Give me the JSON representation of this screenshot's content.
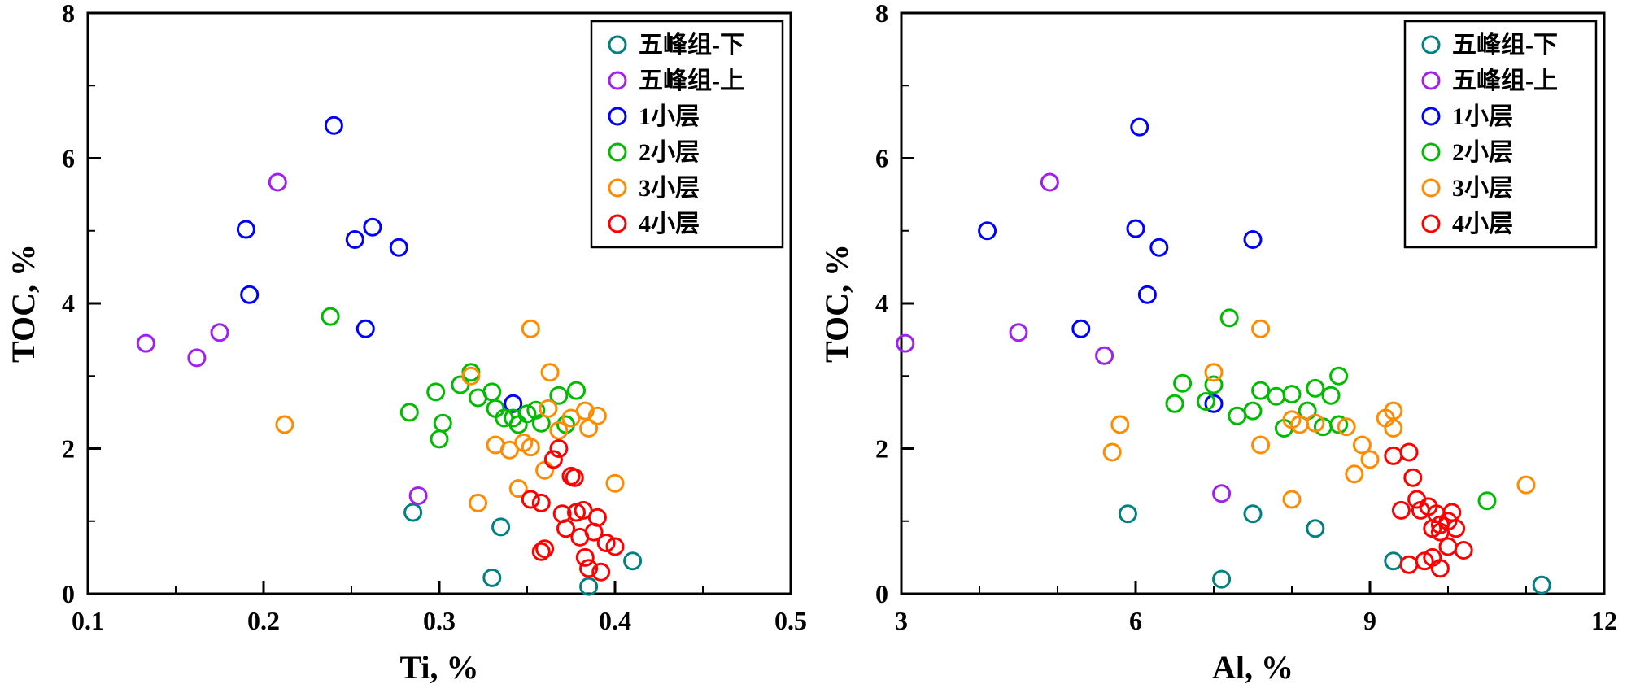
{
  "figure": {
    "background": "#ffffff",
    "frame_color": "#000000"
  },
  "chart_data": [
    {
      "type": "scatter",
      "title": "",
      "xlabel": "Ti, %",
      "ylabel": "TOC, %",
      "xlim": [
        0.1,
        0.5
      ],
      "ylim": [
        0,
        8
      ],
      "xticks": [
        0.1,
        0.2,
        0.3,
        0.4,
        0.5
      ],
      "xtick_labels": [
        "0.1",
        "0.2",
        "0.3",
        "0.4",
        "0.5"
      ],
      "yticks": [
        0,
        2,
        4,
        6,
        8
      ],
      "ytick_labels": [
        "0",
        "2",
        "4",
        "6",
        "8"
      ],
      "x_minor_step": 0.05,
      "y_minor_step": 1,
      "grid": false,
      "legend_position": "top-right",
      "marker": "open-circle",
      "series": [
        {
          "name": "五峰组-下",
          "color": "#008080",
          "points": [
            [
              0.285,
              1.12
            ],
            [
              0.335,
              0.92
            ],
            [
              0.33,
              0.22
            ],
            [
              0.385,
              0.1
            ],
            [
              0.41,
              0.45
            ]
          ]
        },
        {
          "name": "五峰组-上",
          "color": "#A020F0",
          "points": [
            [
              0.133,
              3.45
            ],
            [
              0.162,
              3.25
            ],
            [
              0.175,
              3.6
            ],
            [
              0.208,
              5.67
            ],
            [
              0.288,
              1.35
            ]
          ]
        },
        {
          "name": "1小层",
          "color": "#0000FF",
          "points": [
            [
              0.19,
              5.02
            ],
            [
              0.192,
              4.12
            ],
            [
              0.24,
              6.45
            ],
            [
              0.252,
              4.88
            ],
            [
              0.262,
              5.05
            ],
            [
              0.258,
              3.65
            ],
            [
              0.277,
              4.77
            ],
            [
              0.342,
              2.62
            ]
          ]
        },
        {
          "name": "2小层",
          "color": "#00BB00",
          "points": [
            [
              0.238,
              3.82
            ],
            [
              0.283,
              2.5
            ],
            [
              0.298,
              2.78
            ],
            [
              0.302,
              2.35
            ],
            [
              0.3,
              2.13
            ],
            [
              0.312,
              2.88
            ],
            [
              0.318,
              3.05
            ],
            [
              0.322,
              2.7
            ],
            [
              0.33,
              2.78
            ],
            [
              0.332,
              2.55
            ],
            [
              0.337,
              2.42
            ],
            [
              0.345,
              2.33
            ],
            [
              0.35,
              2.48
            ],
            [
              0.355,
              2.53
            ],
            [
              0.358,
              2.35
            ],
            [
              0.368,
              2.73
            ],
            [
              0.372,
              2.33
            ],
            [
              0.378,
              2.8
            ],
            [
              0.342,
              2.42
            ]
          ]
        },
        {
          "name": "3小层",
          "color": "#FF8C00",
          "points": [
            [
              0.212,
              2.33
            ],
            [
              0.322,
              1.25
            ],
            [
              0.318,
              3.0
            ],
            [
              0.332,
              2.05
            ],
            [
              0.34,
              1.98
            ],
            [
              0.348,
              2.08
            ],
            [
              0.352,
              3.65
            ],
            [
              0.352,
              2.02
            ],
            [
              0.362,
              2.55
            ],
            [
              0.363,
              3.05
            ],
            [
              0.368,
              2.25
            ],
            [
              0.375,
              2.42
            ],
            [
              0.383,
              2.52
            ],
            [
              0.385,
              2.28
            ],
            [
              0.39,
              2.45
            ],
            [
              0.4,
              1.52
            ],
            [
              0.345,
              1.45
            ],
            [
              0.36,
              1.7
            ]
          ]
        },
        {
          "name": "4小层",
          "color": "#FF0000",
          "points": [
            [
              0.352,
              1.3
            ],
            [
              0.358,
              1.25
            ],
            [
              0.36,
              0.62
            ],
            [
              0.365,
              1.85
            ],
            [
              0.368,
              2.0
            ],
            [
              0.37,
              1.1
            ],
            [
              0.372,
              0.9
            ],
            [
              0.375,
              1.62
            ],
            [
              0.377,
              1.6
            ],
            [
              0.378,
              1.12
            ],
            [
              0.38,
              0.78
            ],
            [
              0.382,
              1.15
            ],
            [
              0.383,
              0.5
            ],
            [
              0.385,
              0.35
            ],
            [
              0.388,
              0.85
            ],
            [
              0.39,
              1.05
            ],
            [
              0.392,
              0.3
            ],
            [
              0.395,
              0.7
            ],
            [
              0.4,
              0.65
            ],
            [
              0.358,
              0.58
            ]
          ]
        }
      ]
    },
    {
      "type": "scatter",
      "title": "",
      "xlabel": "Al, %",
      "ylabel": "TOC, %",
      "xlim": [
        3,
        12
      ],
      "ylim": [
        0,
        8
      ],
      "xticks": [
        3,
        6,
        9,
        12
      ],
      "xtick_labels": [
        "3",
        "6",
        "9",
        "12"
      ],
      "yticks": [
        0,
        2,
        4,
        6,
        8
      ],
      "ytick_labels": [
        "0",
        "2",
        "4",
        "6",
        "8"
      ],
      "x_minor_step": 1,
      "y_minor_step": 1,
      "grid": false,
      "legend_position": "top-right",
      "marker": "open-circle",
      "series": [
        {
          "name": "五峰组-下",
          "color": "#008080",
          "points": [
            [
              5.9,
              1.1
            ],
            [
              7.1,
              0.2
            ],
            [
              7.5,
              1.1
            ],
            [
              8.3,
              0.9
            ],
            [
              9.3,
              0.45
            ],
            [
              11.2,
              0.12
            ]
          ]
        },
        {
          "name": "五峰组-上",
          "color": "#A020F0",
          "points": [
            [
              3.05,
              3.45
            ],
            [
              4.5,
              3.6
            ],
            [
              4.9,
              5.67
            ],
            [
              5.6,
              3.28
            ],
            [
              7.1,
              1.38
            ]
          ]
        },
        {
          "name": "1小层",
          "color": "#0000FF",
          "points": [
            [
              4.1,
              5.0
            ],
            [
              5.3,
              3.65
            ],
            [
              6.05,
              6.43
            ],
            [
              6.0,
              5.03
            ],
            [
              6.3,
              4.77
            ],
            [
              6.15,
              4.12
            ],
            [
              7.5,
              4.88
            ],
            [
              7.0,
              2.62
            ]
          ]
        },
        {
          "name": "2小层",
          "color": "#00BB00",
          "points": [
            [
              6.5,
              2.62
            ],
            [
              6.6,
              2.9
            ],
            [
              6.9,
              2.65
            ],
            [
              7.0,
              2.88
            ],
            [
              7.2,
              3.8
            ],
            [
              7.3,
              2.45
            ],
            [
              7.5,
              2.52
            ],
            [
              7.6,
              2.8
            ],
            [
              7.8,
              2.72
            ],
            [
              7.9,
              2.28
            ],
            [
              8.0,
              2.75
            ],
            [
              8.2,
              2.52
            ],
            [
              8.3,
              2.83
            ],
            [
              8.4,
              2.3
            ],
            [
              8.5,
              2.73
            ],
            [
              8.6,
              3.0
            ],
            [
              8.6,
              2.33
            ],
            [
              10.5,
              1.28
            ]
          ]
        },
        {
          "name": "3小层",
          "color": "#FF8C00",
          "points": [
            [
              5.7,
              1.95
            ],
            [
              5.8,
              2.33
            ],
            [
              7.0,
              3.05
            ],
            [
              7.6,
              3.65
            ],
            [
              7.6,
              2.05
            ],
            [
              8.0,
              2.4
            ],
            [
              8.1,
              2.33
            ],
            [
              8.3,
              2.35
            ],
            [
              8.7,
              2.3
            ],
            [
              8.9,
              2.05
            ],
            [
              9.2,
              2.42
            ],
            [
              9.3,
              2.52
            ],
            [
              9.3,
              2.28
            ],
            [
              8.0,
              1.3
            ],
            [
              8.8,
              1.65
            ],
            [
              9.0,
              1.85
            ],
            [
              11.0,
              1.5
            ]
          ]
        },
        {
          "name": "4小层",
          "color": "#FF0000",
          "points": [
            [
              9.3,
              1.9
            ],
            [
              9.4,
              1.15
            ],
            [
              9.5,
              1.95
            ],
            [
              9.55,
              1.6
            ],
            [
              9.6,
              1.3
            ],
            [
              9.65,
              1.15
            ],
            [
              9.7,
              0.45
            ],
            [
              9.75,
              1.2
            ],
            [
              9.8,
              0.9
            ],
            [
              9.8,
              0.5
            ],
            [
              9.85,
              1.1
            ],
            [
              9.9,
              0.85
            ],
            [
              9.9,
              0.35
            ],
            [
              10.0,
              1.0
            ],
            [
              10.0,
              0.65
            ],
            [
              10.1,
              0.9
            ],
            [
              10.2,
              0.6
            ],
            [
              9.5,
              0.4
            ],
            [
              9.9,
              0.95
            ],
            [
              10.05,
              1.12
            ]
          ]
        }
      ]
    }
  ]
}
